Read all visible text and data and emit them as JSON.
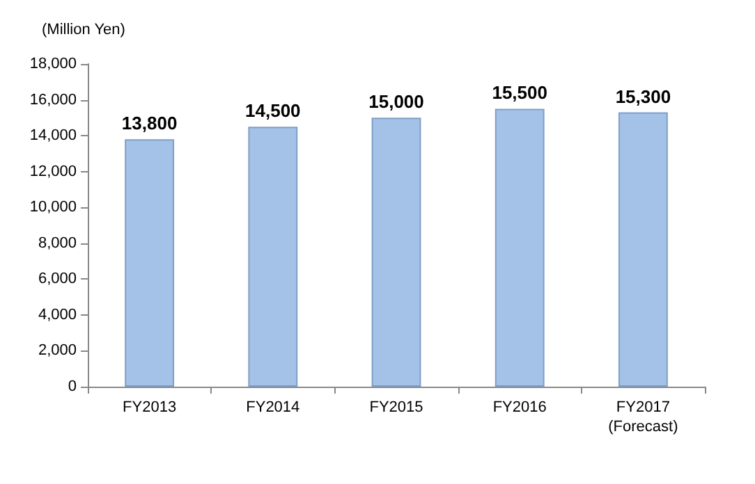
{
  "chart_data": {
    "type": "bar",
    "ylabel": "(Million Yen)",
    "categories": [
      "FY2013",
      "FY2014",
      "FY2015",
      "FY2016",
      "FY2017\n(Forecast)"
    ],
    "values": [
      13800,
      14500,
      15000,
      15500,
      15300
    ],
    "color": "#a4c2e8",
    "ylim": [
      0,
      18000
    ],
    "yticks": [
      0,
      {
        "value": 2000,
        "label": "2,000"
      },
      {
        "value": 4000,
        "label": "4,000"
      },
      {
        "value": 6000,
        "label": "6,000"
      },
      {
        "value": 8000,
        "label": "8,000"
      },
      {
        "value": 10000,
        "label": "10,000"
      },
      {
        "value": 12000,
        "label": "12,000"
      },
      {
        "value": 14000,
        "label": "14,000"
      },
      {
        "value": 16000,
        "label": "16,000"
      },
      {
        "value": 18000,
        "label": "18,000"
      }
    ],
    "value_labels": [
      "13,800",
      "14,500",
      "15,000",
      "15,500",
      "15,300"
    ],
    "grid": false
  }
}
